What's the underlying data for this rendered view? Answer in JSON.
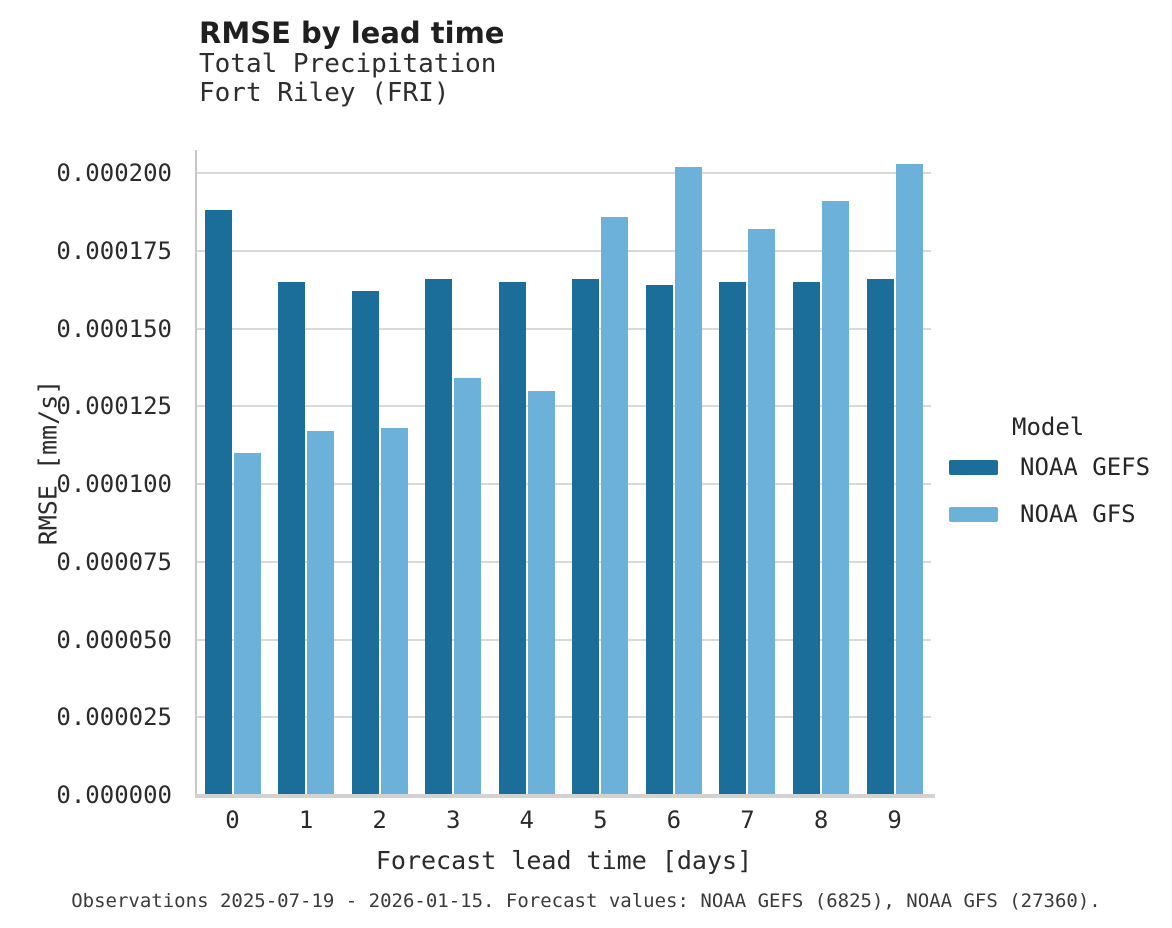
{
  "header": {
    "title": "RMSE by lead time",
    "subtitle_line1": "Total Precipitation",
    "subtitle_line2": "Fort Riley (FRI)"
  },
  "chart_data": {
    "type": "bar",
    "title": "RMSE by lead time",
    "subtitle": "Total Precipitation\nFort Riley (FRI)",
    "xlabel": "Forecast lead time [days]",
    "ylabel": "RMSE [mm/s]",
    "categories": [
      "0",
      "1",
      "2",
      "3",
      "4",
      "5",
      "6",
      "7",
      "8",
      "9"
    ],
    "series": [
      {
        "name": "NOAA GEFS",
        "color": "#1B6E99",
        "values": [
          0.000188,
          0.000165,
          0.000162,
          0.000166,
          0.000165,
          0.000166,
          0.000164,
          0.000165,
          0.000165,
          0.000166
        ]
      },
      {
        "name": "NOAA GFS",
        "color": "#6BB1D9",
        "values": [
          0.00011,
          0.000117,
          0.000118,
          0.000134,
          0.00013,
          0.000186,
          0.000202,
          0.000182,
          0.000191,
          0.000203
        ]
      }
    ],
    "ylim": [
      0,
      0.0002074
    ],
    "yticks": [
      0,
      2.5e-05,
      5e-05,
      7.5e-05,
      0.0001,
      0.000125,
      0.00015,
      0.000175,
      0.0002
    ],
    "ytick_labels": [
      "0.000000",
      "0.000025",
      "0.000050",
      "0.000075",
      "0.000100",
      "0.000125",
      "0.000150",
      "0.000175",
      "0.000200"
    ],
    "grid": "horizontal",
    "legend_title": "Model",
    "legend_position": "right-center"
  },
  "legend": {
    "title": "Model",
    "items": [
      {
        "label": "NOAA GEFS",
        "color": "#1B6E99"
      },
      {
        "label": "NOAA GFS",
        "color": "#6BB1D9"
      }
    ]
  },
  "footer": {
    "note": "Observations 2025-07-19 - 2026-01-15. Forecast values: NOAA GEFS (6825), NOAA GFS (27360)."
  },
  "colors": {
    "gefs_bar": "#1B6E99",
    "gfs_bar": "#6BB1D9",
    "gridline": "#D9D9D9",
    "spine": "#C6C6C6",
    "baseline": "#D2D2D2",
    "title_text": "#1F1F1F",
    "tick_text": "#2B2B2B",
    "footer_text": "#3A3A3A"
  }
}
